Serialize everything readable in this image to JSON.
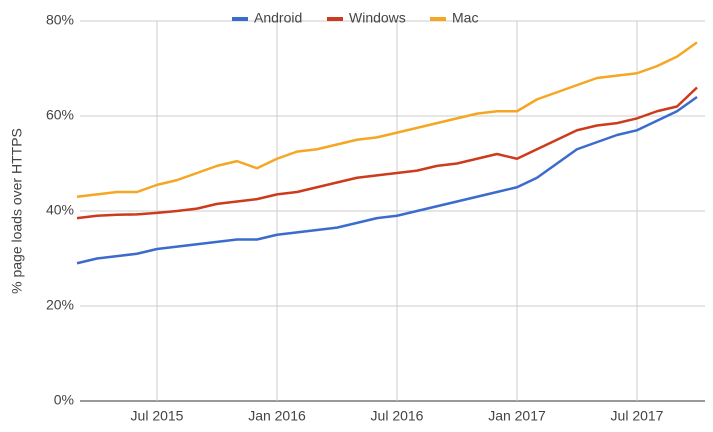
{
  "chart_data": {
    "type": "line",
    "y_label": "% page loads over HTTPS",
    "categories": [
      null,
      null,
      null,
      null,
      "Jul 2015",
      null,
      null,
      null,
      null,
      null,
      "Jan 2016",
      null,
      null,
      null,
      null,
      null,
      "Jul 2016",
      null,
      null,
      null,
      null,
      null,
      "Jan 2017",
      null,
      null,
      null,
      null,
      null,
      "Jul 2017",
      null,
      null,
      null
    ],
    "series": [
      {
        "name": "Android",
        "color": "#3b6ccc",
        "values": [
          29,
          30,
          30.5,
          31,
          32,
          32.5,
          33,
          33.5,
          34,
          34,
          35,
          35.5,
          36,
          36.5,
          37.5,
          38.5,
          39,
          40,
          41,
          42,
          43,
          44,
          45,
          47,
          50,
          53,
          54.5,
          56,
          57,
          59,
          61,
          64
        ]
      },
      {
        "name": "Windows",
        "color": "#cc3b1b",
        "values": [
          38.5,
          39,
          39.2,
          39.3,
          39.6,
          40,
          40.5,
          41.5,
          42,
          42.5,
          43.5,
          44,
          45,
          46,
          47,
          47.5,
          48,
          48.5,
          49.5,
          50,
          51,
          52,
          51,
          53,
          55,
          57,
          58,
          58.5,
          59.5,
          61,
          62,
          66
        ]
      },
      {
        "name": "Mac",
        "color": "#f5a623",
        "values": [
          43,
          43.5,
          44,
          44,
          45.5,
          46.5,
          48,
          49.5,
          50.5,
          49,
          51,
          52.5,
          53,
          54,
          55,
          55.5,
          56.5,
          57.5,
          58.5,
          59.5,
          60.5,
          61,
          61,
          63.5,
          65,
          66.5,
          68,
          68.5,
          69,
          70.5,
          72.5,
          75.5
        ]
      }
    ],
    "ylim": [
      0,
      80
    ],
    "yticks": [
      {
        "value": 0,
        "label": "0%"
      },
      {
        "value": 20,
        "label": "20%"
      },
      {
        "value": 40,
        "label": "40%"
      },
      {
        "value": 60,
        "label": "60%"
      },
      {
        "value": 80,
        "label": "80%"
      }
    ],
    "grid": true
  }
}
